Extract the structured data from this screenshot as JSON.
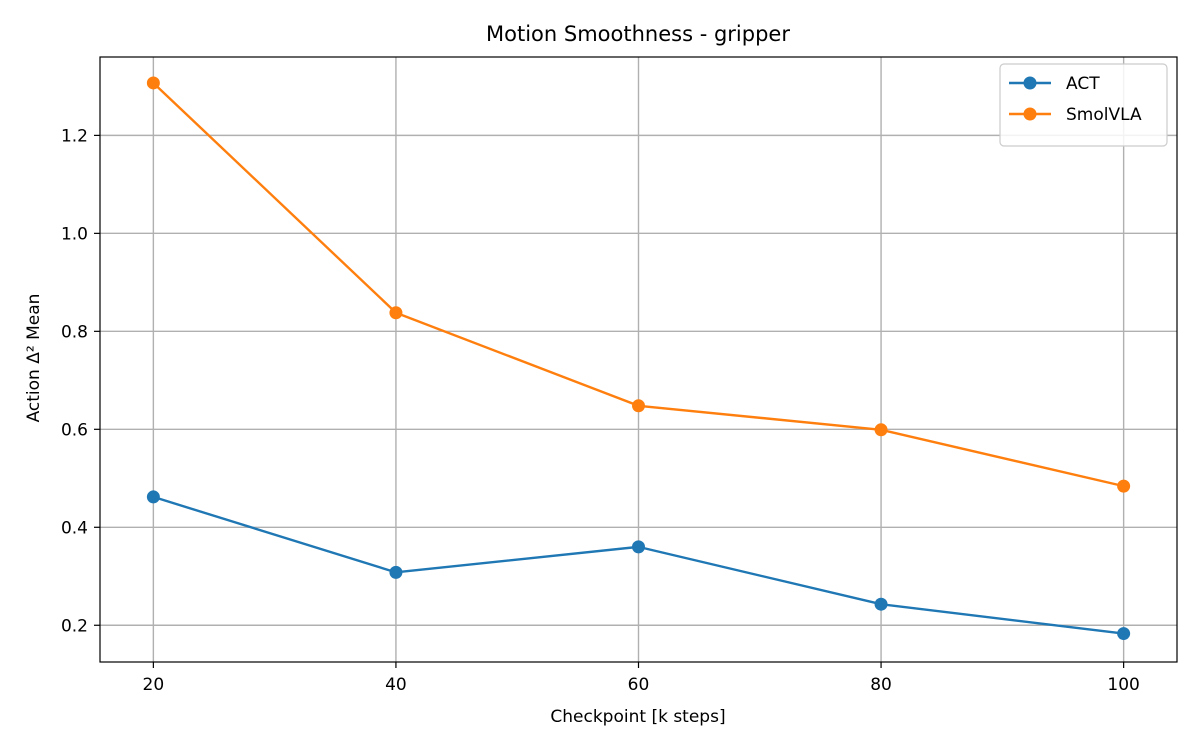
{
  "chart_data": {
    "type": "line",
    "title": "Motion Smoothness - gripper",
    "xlabel": "Checkpoint [k steps]",
    "ylabel": "Action Δ² Mean",
    "x": [
      20,
      40,
      60,
      80,
      100
    ],
    "xticks": [
      20,
      40,
      60,
      80,
      100
    ],
    "yticks": [
      0.2,
      0.4,
      0.6,
      0.8,
      1.0,
      1.2
    ],
    "xlim": [
      15.6,
      104.4
    ],
    "ylim": [
      0.125,
      1.36
    ],
    "grid": true,
    "legend_position": "top-right",
    "series": [
      {
        "name": "ACT",
        "color": "#1f77b4",
        "values": [
          0.462,
          0.308,
          0.36,
          0.243,
          0.183
        ]
      },
      {
        "name": "SmolVLA",
        "color": "#ff7f0e",
        "values": [
          1.307,
          0.838,
          0.648,
          0.599,
          0.484
        ]
      }
    ]
  }
}
